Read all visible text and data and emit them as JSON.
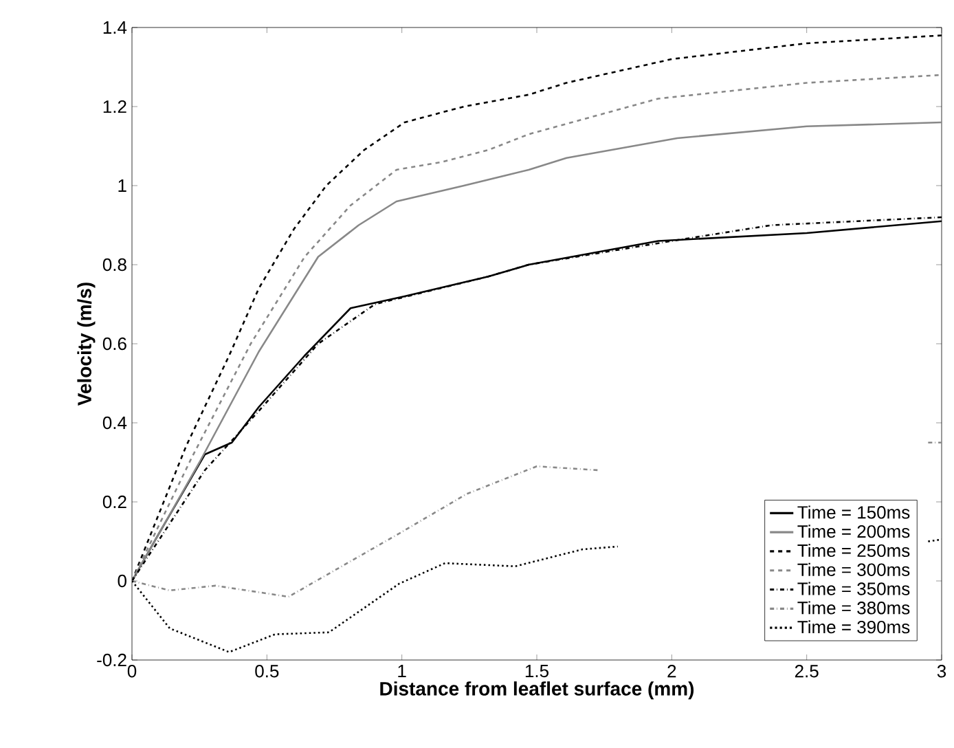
{
  "chart_data": {
    "type": "line",
    "xlabel": "Distance from leaflet surface (mm)",
    "ylabel": "Velocity (m/s)",
    "xlim": [
      0,
      3
    ],
    "ylim": [
      -0.2,
      1.4
    ],
    "xticks": [
      0,
      0.5,
      1,
      1.5,
      2,
      2.5,
      3
    ],
    "yticks": [
      -0.2,
      0,
      0.2,
      0.4,
      0.6,
      0.8,
      1,
      1.2,
      1.4
    ],
    "legend": "bottom right",
    "series": [
      {
        "name": "Time = 150ms",
        "color": "#000000",
        "line_style": "solid",
        "x": [
          0,
          0.1,
          0.27,
          0.37,
          0.47,
          0.64,
          0.81,
          1.01,
          1.32,
          1.47,
          1.95,
          2.5,
          3
        ],
        "values": [
          0,
          0.12,
          0.32,
          0.35,
          0.44,
          0.57,
          0.69,
          0.72,
          0.77,
          0.8,
          0.86,
          0.88,
          0.91
        ]
      },
      {
        "name": "Time = 200ms",
        "color": "#888888",
        "line_style": "solid",
        "x": [
          0,
          0.25,
          0.47,
          0.69,
          0.84,
          0.98,
          1.23,
          1.47,
          1.61,
          2.02,
          2.5,
          3
        ],
        "values": [
          0,
          0.3,
          0.58,
          0.82,
          0.9,
          0.96,
          1.0,
          1.04,
          1.07,
          1.12,
          1.15,
          1.16
        ]
      },
      {
        "name": "Time = 250ms",
        "color": "#000000",
        "line_style": "dashed",
        "x": [
          0,
          0.2,
          0.36,
          0.47,
          0.6,
          0.72,
          0.86,
          1.01,
          1.23,
          1.47,
          1.61,
          2.0,
          2.5,
          3
        ],
        "values": [
          0,
          0.34,
          0.57,
          0.74,
          0.89,
          1.0,
          1.09,
          1.16,
          1.2,
          1.23,
          1.26,
          1.32,
          1.36,
          1.38
        ]
      },
      {
        "name": "Time = 300ms",
        "color": "#888888",
        "line_style": "dashed",
        "x": [
          0,
          0.22,
          0.44,
          0.64,
          0.81,
          0.98,
          1.15,
          1.32,
          1.47,
          1.95,
          2.5,
          3
        ],
        "values": [
          0,
          0.31,
          0.6,
          0.82,
          0.95,
          1.04,
          1.06,
          1.09,
          1.13,
          1.22,
          1.26,
          1.28
        ]
      },
      {
        "name": "Time = 350ms",
        "color": "#000000",
        "line_style": "dashdot",
        "x": [
          0,
          0.27,
          0.47,
          0.69,
          0.9,
          1.32,
          1.47,
          2.0,
          2.37,
          3
        ],
        "values": [
          0,
          0.28,
          0.43,
          0.6,
          0.7,
          0.77,
          0.8,
          0.86,
          0.9,
          0.92
        ]
      },
      {
        "name": "Time = 380ms",
        "color": "#888888",
        "line_style": "dashdot",
        "x": [
          0,
          0.14,
          0.31,
          0.58,
          0.99,
          1.24,
          1.5,
          1.73,
          2.3,
          2.95,
          3
        ],
        "values": [
          0,
          -0.024,
          -0.012,
          -0.04,
          0.12,
          0.22,
          0.29,
          0.28,
          null,
          0.35,
          0.35
        ]
      },
      {
        "name": "Time = 390ms",
        "color": "#000000",
        "line_style": "dotted",
        "x": [
          0,
          0.14,
          0.36,
          0.53,
          0.73,
          0.99,
          1.16,
          1.42,
          1.67,
          1.8,
          2.3,
          2.95,
          3
        ],
        "values": [
          0,
          -0.12,
          -0.18,
          -0.135,
          -0.13,
          -0.007,
          0.045,
          0.037,
          0.08,
          0.087,
          null,
          0.1,
          0.105
        ]
      }
    ]
  }
}
